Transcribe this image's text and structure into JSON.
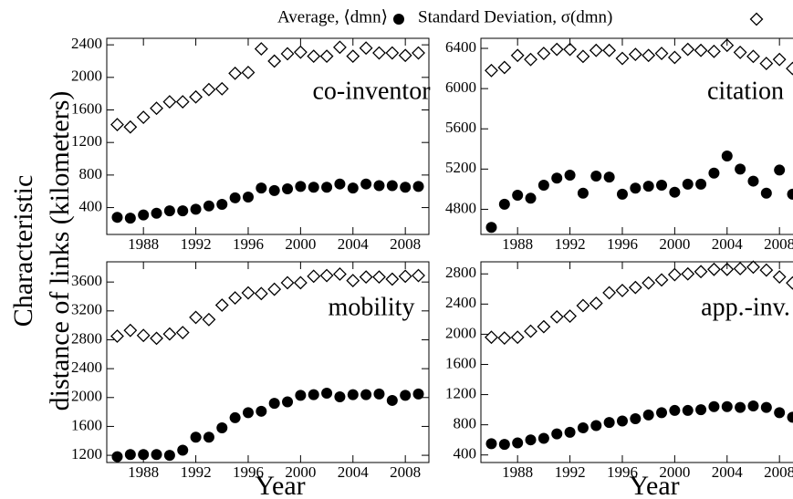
{
  "chart_data": [
    {
      "type": "scatter",
      "annotation": "co-inventor",
      "ylabel": [
        "Characteristic",
        "distance of links (kilometers)"
      ],
      "x": [
        1986,
        1987,
        1988,
        1989,
        1990,
        1991,
        1992,
        1993,
        1994,
        1995,
        1996,
        1997,
        1998,
        1999,
        2000,
        2001,
        2002,
        2003,
        2004,
        2005,
        2006,
        2007,
        2008,
        2009
      ],
      "series": [
        {
          "name": "Average, ⟨dmn⟩",
          "color": "#000000",
          "marker": "circle",
          "values": [
            280,
            270,
            310,
            330,
            360,
            360,
            380,
            420,
            440,
            520,
            530,
            640,
            610,
            630,
            660,
            650,
            650,
            690,
            640,
            690,
            670,
            670,
            650,
            660
          ]
        },
        {
          "name": "Standard Deviation, σ(dmn)",
          "color": "#000000",
          "marker": "diamond",
          "values": [
            1420,
            1390,
            1510,
            1620,
            1700,
            1700,
            1760,
            1850,
            1860,
            2050,
            2060,
            2350,
            2200,
            2290,
            2310,
            2260,
            2260,
            2370,
            2260,
            2360,
            2300,
            2300,
            2270,
            2300
          ]
        }
      ],
      "xlim": [
        1985.2,
        2009.8
      ],
      "xticks": [
        1988,
        1992,
        1996,
        2000,
        2004,
        2008
      ],
      "ylim": [
        70,
        2480
      ],
      "yticks": [
        400,
        800,
        1200,
        1600,
        2000,
        2400
      ]
    },
    {
      "type": "scatter",
      "annotation": "citation",
      "x": [
        1986,
        1987,
        1988,
        1989,
        1990,
        1991,
        1992,
        1993,
        1994,
        1995,
        1996,
        1997,
        1998,
        1999,
        2000,
        2001,
        2002,
        2003,
        2004,
        2005,
        2006,
        2007,
        2008,
        2009
      ],
      "series": [
        {
          "color": "#000000",
          "marker": "circle",
          "values": [
            4620,
            4850,
            4940,
            4910,
            5040,
            5110,
            5140,
            4960,
            5130,
            5120,
            4950,
            5010,
            5030,
            5040,
            4970,
            5050,
            5050,
            5160,
            5330,
            5200,
            5080,
            4960,
            5190,
            4950
          ]
        },
        {
          "color": "#000000",
          "marker": "diamond",
          "values": [
            6180,
            6210,
            6330,
            6290,
            6350,
            6390,
            6390,
            6320,
            6380,
            6380,
            6300,
            6340,
            6330,
            6350,
            6310,
            6390,
            6380,
            6370,
            6430,
            6360,
            6320,
            6250,
            6290,
            6200
          ]
        }
      ],
      "xlim": [
        1985.2,
        2009.8
      ],
      "xticks": [
        1988,
        1992,
        1996,
        2000,
        2004,
        2008
      ],
      "ylim": [
        4550,
        6500
      ],
      "yticks": [
        4800,
        5200,
        5600,
        6000,
        6400
      ]
    },
    {
      "type": "scatter",
      "annotation": "mobility",
      "xlabel": "Year",
      "x": [
        1986,
        1987,
        1988,
        1989,
        1990,
        1991,
        1992,
        1993,
        1994,
        1995,
        1996,
        1997,
        1998,
        1999,
        2000,
        2001,
        2002,
        2003,
        2004,
        2005,
        2006,
        2007,
        2008,
        2009
      ],
      "series": [
        {
          "color": "#000000",
          "marker": "circle",
          "values": [
            1180,
            1210,
            1210,
            1210,
            1200,
            1270,
            1450,
            1450,
            1580,
            1720,
            1790,
            1810,
            1920,
            1940,
            2030,
            2040,
            2060,
            2010,
            2040,
            2040,
            2050,
            1960,
            2030,
            2050
          ]
        },
        {
          "color": "#000000",
          "marker": "diamond",
          "values": [
            2850,
            2930,
            2860,
            2820,
            2880,
            2900,
            3110,
            3080,
            3280,
            3380,
            3450,
            3440,
            3500,
            3590,
            3590,
            3680,
            3690,
            3710,
            3620,
            3670,
            3670,
            3640,
            3680,
            3690
          ]
        }
      ],
      "xlim": [
        1985.2,
        2009.8
      ],
      "xticks": [
        1988,
        1992,
        1996,
        2000,
        2004,
        2008
      ],
      "ylim": [
        1100,
        3880
      ],
      "yticks": [
        1200,
        1600,
        2000,
        2400,
        2800,
        3200,
        3600
      ]
    },
    {
      "type": "scatter",
      "annotation": "app.-inv.",
      "xlabel": "Year",
      "x": [
        1986,
        1987,
        1988,
        1989,
        1990,
        1991,
        1992,
        1993,
        1994,
        1995,
        1996,
        1997,
        1998,
        1999,
        2000,
        2001,
        2002,
        2003,
        2004,
        2005,
        2006,
        2007,
        2008,
        2009
      ],
      "series": [
        {
          "color": "#000000",
          "marker": "circle",
          "values": [
            550,
            540,
            560,
            600,
            620,
            680,
            700,
            760,
            790,
            830,
            850,
            880,
            930,
            960,
            990,
            990,
            1000,
            1040,
            1040,
            1030,
            1050,
            1030,
            960,
            900
          ]
        },
        {
          "color": "#000000",
          "marker": "diamond",
          "values": [
            1960,
            1950,
            1960,
            2040,
            2100,
            2230,
            2240,
            2380,
            2410,
            2550,
            2580,
            2620,
            2680,
            2720,
            2790,
            2800,
            2830,
            2860,
            2860,
            2870,
            2890,
            2850,
            2760,
            2680
          ]
        }
      ],
      "xlim": [
        1985.2,
        2009.8
      ],
      "xticks": [
        1988,
        1992,
        1996,
        2000,
        2004,
        2008
      ],
      "ylim": [
        300,
        2960
      ],
      "yticks": [
        400,
        800,
        1200,
        1600,
        2000,
        2400,
        2800
      ]
    }
  ]
}
